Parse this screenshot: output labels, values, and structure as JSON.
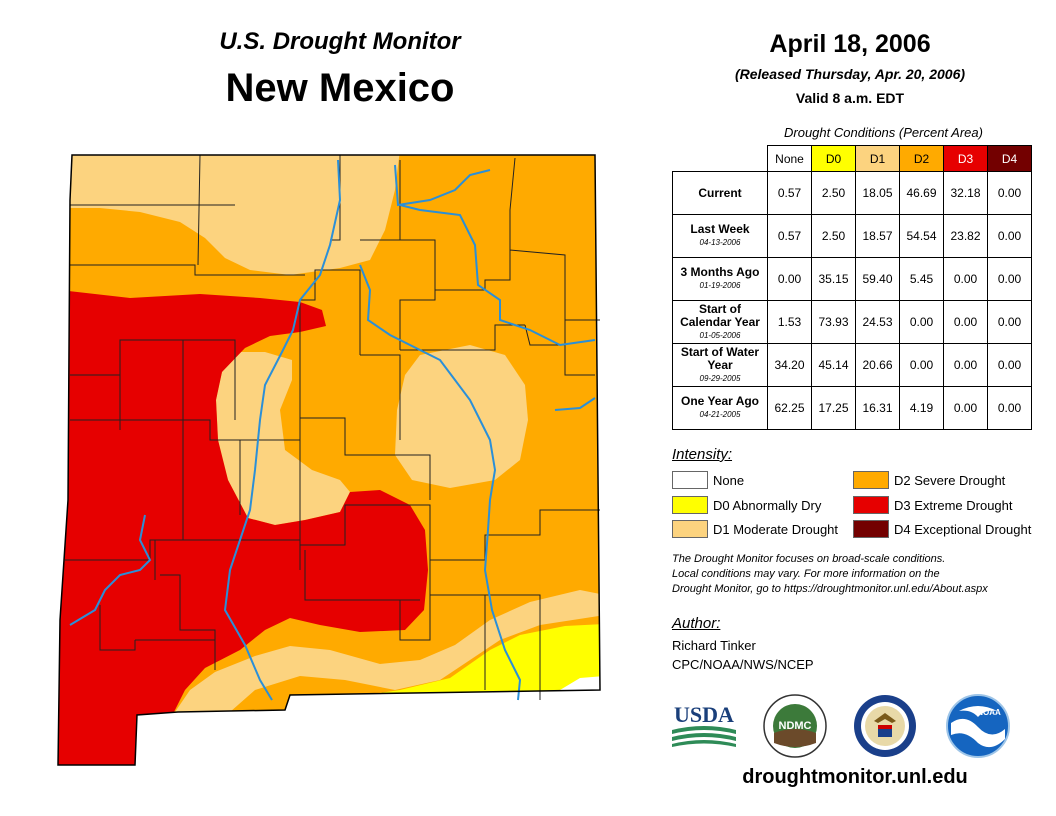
{
  "header": {
    "product": "U.S. Drought Monitor",
    "region": "New Mexico",
    "date": "April 18, 2006",
    "released": "(Released Thursday, Apr. 20, 2006)",
    "valid": "Valid 8 a.m. EDT"
  },
  "conditions": {
    "title": "Drought Conditions (Percent Area)",
    "columns": [
      "None",
      "D0",
      "D1",
      "D2",
      "D3",
      "D4"
    ],
    "column_colors": [
      "#ffffff",
      "#ffff00",
      "#fcd37f",
      "#ffaa00",
      "#e60000",
      "#730000"
    ],
    "column_text_colors": [
      "#000000",
      "#000000",
      "#000000",
      "#000000",
      "#ffffff",
      "#ffffff"
    ],
    "rows": [
      {
        "label": "Current",
        "date": "",
        "values": [
          "0.57",
          "2.50",
          "18.05",
          "46.69",
          "32.18",
          "0.00"
        ]
      },
      {
        "label": "Last Week",
        "date": "04-13-2006",
        "values": [
          "0.57",
          "2.50",
          "18.57",
          "54.54",
          "23.82",
          "0.00"
        ]
      },
      {
        "label": "3 Months Ago",
        "date": "01-19-2006",
        "values": [
          "0.00",
          "35.15",
          "59.40",
          "5.45",
          "0.00",
          "0.00"
        ]
      },
      {
        "label": "Start of Calendar Year",
        "date": "01-05-2006",
        "values": [
          "1.53",
          "73.93",
          "24.53",
          "0.00",
          "0.00",
          "0.00"
        ]
      },
      {
        "label": "Start of Water Year",
        "date": "09-29-2005",
        "values": [
          "34.20",
          "45.14",
          "20.66",
          "0.00",
          "0.00",
          "0.00"
        ]
      },
      {
        "label": "One Year Ago",
        "date": "04-21-2005",
        "values": [
          "62.25",
          "17.25",
          "16.31",
          "4.19",
          "0.00",
          "0.00"
        ]
      }
    ]
  },
  "legend": {
    "title": "Intensity:",
    "items": [
      {
        "label": "None",
        "color": "#ffffff"
      },
      {
        "label": "D0 Abnormally Dry",
        "color": "#ffff00"
      },
      {
        "label": "D1 Moderate Drought",
        "color": "#fcd37f"
      },
      {
        "label": "D2 Severe Drought",
        "color": "#ffaa00"
      },
      {
        "label": "D3 Extreme Drought",
        "color": "#e60000"
      },
      {
        "label": "D4 Exceptional Drought",
        "color": "#730000"
      }
    ]
  },
  "note": {
    "line1": "The Drought Monitor focuses on broad-scale conditions.",
    "line2": "Local conditions may vary. For more information on the",
    "line3": "Drought Monitor, go to https://droughtmonitor.unl.edu/About.aspx"
  },
  "author": {
    "title": "Author:",
    "name": "Richard Tinker",
    "org": "CPC/NOAA/NWS/NCEP"
  },
  "logos": {
    "usda": "USDA",
    "ndmc": "NDMC",
    "noaa": "NOAA"
  },
  "footer_url": "droughtmonitor.unl.edu"
}
